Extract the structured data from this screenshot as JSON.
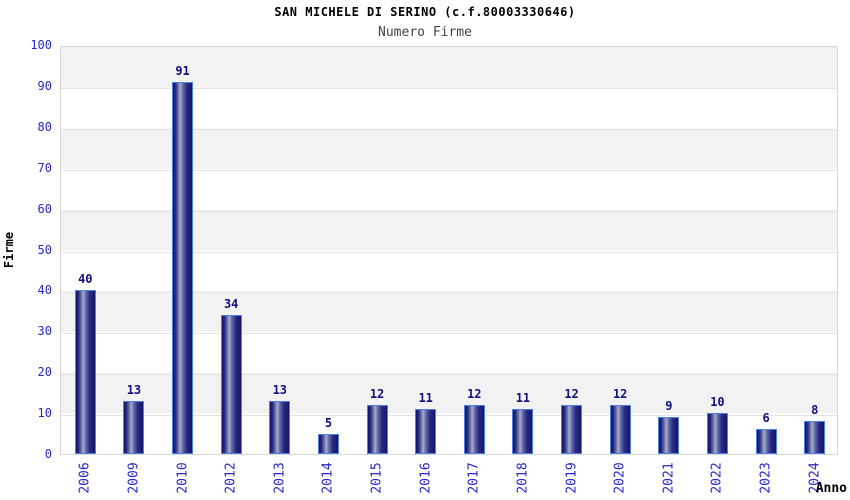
{
  "chart": {
    "title": "SAN MICHELE DI SERINO (c.f.80003330646)",
    "subtitle": "Numero Firme",
    "ylabel": "Firme",
    "xlabel": "Anno"
  },
  "chart_data": {
    "type": "bar",
    "title": "SAN MICHELE DI SERINO (c.f.80003330646)",
    "subtitle": "Numero Firme",
    "xlabel": "Anno",
    "ylabel": "Firme",
    "categories": [
      "2006",
      "2009",
      "2010",
      "2012",
      "2013",
      "2014",
      "2015",
      "2016",
      "2017",
      "2018",
      "2019",
      "2020",
      "2021",
      "2022",
      "2023",
      "2024"
    ],
    "values": [
      40,
      13,
      91,
      34,
      13,
      5,
      12,
      11,
      12,
      11,
      12,
      12,
      9,
      10,
      6,
      8
    ],
    "ylim": [
      0,
      100
    ],
    "yticks": [
      0,
      10,
      20,
      30,
      40,
      50,
      60,
      70,
      80,
      90,
      100
    ],
    "grid": "horizontal alternating bands, gridline every 10",
    "legend": "none",
    "colors": {
      "bar_dark": "#15156a",
      "bar_light": "#a7adcd",
      "bar_border": "#4d82e0",
      "tick_label": "#2626cc",
      "value_label": "#10107e",
      "band_gray": "#f2f2f2",
      "plot_border": "#d8d8d8",
      "title": "#000000",
      "subtitle": "#444444"
    }
  }
}
